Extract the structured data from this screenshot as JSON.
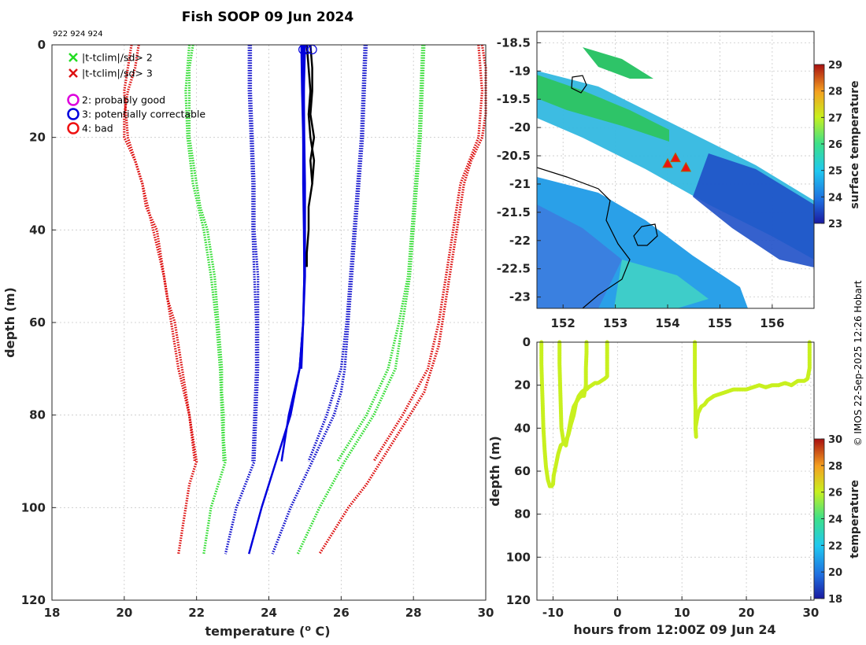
{
  "title": "Fish SOOP 09 Jun 2024",
  "platform_ids": "922 924 924",
  "copyright": "© IMOS 22-Sep-2025 12:26 Hobart",
  "colors": {
    "flag_good": "#22dd22",
    "flag_bad": "#dd1111",
    "probably_good": "#dd00dd",
    "correctable": "#0000dd",
    "bad": "#ee1111",
    "profile": "#000000",
    "clim_red": "#dd1111",
    "clim_green": "#33dd33",
    "clim_blue": "#1111cc",
    "timeseries": "#c8f01e"
  },
  "chart_data": [
    {
      "id": "profile",
      "type": "line",
      "xlabel": "temperature (",
      "xlabel_sup": "o",
      "xlabel_tail": " C)",
      "ylabel": "depth (m)",
      "xlim": [
        18,
        30
      ],
      "ylim": [
        0,
        120
      ],
      "xticks": [
        "18",
        "20",
        "22",
        "24",
        "26",
        "28",
        "30"
      ],
      "yticks": [
        "0",
        "20",
        "40",
        "60",
        "80",
        "100",
        "120"
      ],
      "legend": [
        {
          "marker": "x",
          "color_key": "flag_good",
          "label": "|t-tclim|/sd> 2"
        },
        {
          "marker": "x",
          "color_key": "flag_bad",
          "label": "|t-tclim|/sd> 3"
        },
        {
          "marker": "o",
          "color_key": "probably_good",
          "label": "2: probably good"
        },
        {
          "marker": "o",
          "color_key": "correctable",
          "label": "3: potentially correctable"
        },
        {
          "marker": "o",
          "color_key": "bad",
          "label": "4: bad"
        }
      ],
      "series": [
        {
          "name": "clim -3sd",
          "color_key": "clim_red",
          "style": "dotted",
          "depth": [
            0,
            5,
            10,
            15,
            20,
            25,
            30,
            35,
            40,
            45,
            50,
            55,
            60,
            65,
            70,
            75,
            80,
            85,
            90,
            95,
            100,
            105,
            110
          ],
          "temp": [
            20.4,
            20.3,
            20.1,
            20.0,
            20.0,
            20.3,
            20.5,
            20.6,
            20.9,
            21.0,
            21.1,
            21.2,
            21.4,
            21.5,
            21.6,
            21.7,
            21.8,
            21.9,
            22.0,
            21.8,
            21.7,
            21.6,
            21.5
          ]
        },
        {
          "name": "clim -3sd b",
          "color_key": "clim_red",
          "style": "dotted",
          "depth": [
            0,
            10,
            20,
            30,
            40,
            50,
            60,
            70,
            80,
            90
          ],
          "temp": [
            20.2,
            20.0,
            20.1,
            20.5,
            20.8,
            21.1,
            21.3,
            21.5,
            21.8,
            21.95
          ]
        },
        {
          "name": "clim -2sd",
          "color_key": "clim_green",
          "style": "dotted",
          "depth": [
            0,
            5,
            10,
            15,
            20,
            25,
            30,
            35,
            40,
            45,
            50,
            55,
            60,
            65,
            70,
            75,
            80,
            85,
            90,
            95,
            100,
            105,
            110
          ],
          "temp": [
            21.9,
            21.8,
            21.8,
            21.8,
            21.8,
            21.9,
            22.0,
            22.1,
            22.3,
            22.4,
            22.5,
            22.55,
            22.6,
            22.65,
            22.7,
            22.7,
            22.75,
            22.75,
            22.8,
            22.6,
            22.4,
            22.3,
            22.2
          ]
        },
        {
          "name": "clim -2sd b",
          "color_key": "clim_green",
          "style": "dotted",
          "depth": [
            0,
            10,
            20,
            30,
            40,
            50,
            60,
            70,
            80,
            90
          ],
          "temp": [
            21.8,
            21.7,
            21.75,
            21.9,
            22.2,
            22.4,
            22.55,
            22.65,
            22.7,
            22.75
          ]
        },
        {
          "name": "clim -1sd",
          "color_key": "clim_blue",
          "style": "dotted",
          "depth": [
            0,
            10,
            20,
            30,
            40,
            50,
            60,
            70,
            80,
            90,
            100,
            110
          ],
          "temp": [
            23.5,
            23.5,
            23.55,
            23.6,
            23.6,
            23.7,
            23.7,
            23.7,
            23.65,
            23.6,
            23.1,
            22.8
          ]
        },
        {
          "name": "clim -1sd b",
          "color_key": "clim_blue",
          "style": "dotted",
          "depth": [
            0,
            10,
            20,
            30,
            40,
            50,
            60,
            70,
            80,
            90
          ],
          "temp": [
            23.45,
            23.45,
            23.5,
            23.55,
            23.55,
            23.6,
            23.65,
            23.65,
            23.6,
            23.55
          ]
        },
        {
          "name": "clim +1sd",
          "color_key": "clim_blue",
          "style": "dotted",
          "depth": [
            0,
            10,
            20,
            30,
            40,
            50,
            60,
            70,
            75,
            80,
            85,
            90,
            100,
            110
          ],
          "temp": [
            26.7,
            26.65,
            26.6,
            26.5,
            26.4,
            26.3,
            26.2,
            26.1,
            26.0,
            25.8,
            25.5,
            25.2,
            24.6,
            24.1
          ]
        },
        {
          "name": "clim +1sd b",
          "color_key": "clim_blue",
          "style": "dotted",
          "depth": [
            0,
            10,
            20,
            30,
            40,
            50,
            60,
            70,
            80,
            90
          ],
          "temp": [
            26.65,
            26.6,
            26.55,
            26.45,
            26.35,
            26.25,
            26.15,
            26.0,
            25.6,
            25.1
          ]
        },
        {
          "name": "clim +2sd",
          "color_key": "clim_green",
          "style": "dotted",
          "depth": [
            0,
            10,
            20,
            30,
            40,
            50,
            60,
            70,
            75,
            80,
            85,
            90,
            100,
            110
          ],
          "temp": [
            28.3,
            28.25,
            28.2,
            28.1,
            28.0,
            27.9,
            27.7,
            27.5,
            27.2,
            26.9,
            26.5,
            26.1,
            25.4,
            24.8
          ]
        },
        {
          "name": "clim +2sd b",
          "color_key": "clim_green",
          "style": "dotted",
          "depth": [
            0,
            10,
            20,
            30,
            40,
            50,
            60,
            70,
            80,
            90
          ],
          "temp": [
            28.25,
            28.2,
            28.15,
            28.05,
            27.95,
            27.85,
            27.6,
            27.3,
            26.7,
            25.9
          ]
        },
        {
          "name": "clim +3sd",
          "color_key": "clim_red",
          "style": "dotted",
          "depth": [
            0,
            5,
            10,
            15,
            20,
            25,
            30,
            35,
            40,
            45,
            50,
            55,
            60,
            65,
            70,
            75,
            80,
            85,
            90,
            95,
            100,
            105,
            110
          ],
          "temp": [
            29.9,
            30.0,
            30.0,
            30.0,
            29.9,
            29.6,
            29.4,
            29.3,
            29.2,
            29.1,
            29.0,
            28.9,
            28.8,
            28.7,
            28.5,
            28.3,
            27.9,
            27.5,
            27.1,
            26.7,
            26.2,
            25.8,
            25.4
          ]
        },
        {
          "name": "clim +3sd b",
          "color_key": "clim_red",
          "style": "dotted",
          "depth": [
            0,
            10,
            20,
            30,
            40,
            50,
            60,
            70,
            80,
            90
          ],
          "temp": [
            29.8,
            29.9,
            29.8,
            29.3,
            29.1,
            28.9,
            28.7,
            28.4,
            27.7,
            26.9
          ]
        },
        {
          "name": "profile 1",
          "color_key": "correctable",
          "style": "solid",
          "width": 2.5,
          "depth": [
            0,
            10,
            20,
            30,
            40,
            50,
            60,
            70,
            80,
            90,
            100,
            110
          ],
          "temp": [
            24.95,
            24.97,
            24.98,
            25.0,
            25.0,
            25.0,
            24.95,
            24.85,
            24.6,
            24.2,
            23.8,
            23.45
          ]
        },
        {
          "name": "profile 2",
          "color_key": "correctable",
          "style": "solid",
          "width": 2.5,
          "depth": [
            0,
            10,
            20,
            30,
            40,
            50,
            60,
            70,
            80,
            90
          ],
          "temp": [
            25.0,
            24.97,
            24.95,
            24.95,
            24.97,
            24.98,
            24.95,
            24.85,
            24.55,
            24.35
          ]
        },
        {
          "name": "profile 3",
          "color_key": "correctable",
          "style": "solid",
          "width": 2.5,
          "depth": [
            0,
            10,
            20,
            30,
            40,
            50,
            60,
            70
          ],
          "temp": [
            24.9,
            24.92,
            24.95,
            24.97,
            24.98,
            24.98,
            24.95,
            24.9
          ]
        },
        {
          "name": "profile 4",
          "color_key": "profile",
          "style": "solid",
          "width": 2.5,
          "depth": [
            0,
            5,
            10,
            15,
            20,
            25,
            30,
            35,
            40,
            45,
            48
          ],
          "temp": [
            25.15,
            25.2,
            25.2,
            25.15,
            25.25,
            25.15,
            25.2,
            25.1,
            25.1,
            25.05,
            25.05
          ]
        },
        {
          "name": "profile 5",
          "color_key": "profile",
          "style": "solid",
          "width": 2.5,
          "depth": [
            0,
            5,
            10,
            15,
            20,
            25,
            30
          ],
          "temp": [
            25.05,
            25.1,
            25.15,
            25.1,
            25.15,
            25.25,
            25.2
          ]
        }
      ],
      "circles": [
        {
          "temp": 24.95,
          "depth": 0.5,
          "color_key": "correctable"
        },
        {
          "temp": 25.05,
          "depth": 0.5,
          "color_key": "correctable"
        },
        {
          "temp": 25.2,
          "depth": 0.5,
          "color_key": "correctable"
        }
      ]
    },
    {
      "id": "map",
      "type": "heatmap",
      "xlim": [
        151.5,
        156.8
      ],
      "ylim": [
        -23.2,
        -18.3
      ],
      "xticks": [
        "152",
        "153",
        "154",
        "155",
        "156"
      ],
      "yticks": [
        "-18.5",
        "-19",
        "-19.5",
        "-20",
        "-20.5",
        "-21",
        "-21.5",
        "-22",
        "-22.5",
        "-23"
      ],
      "colorbar": {
        "label": "surface temperature",
        "ticks": [
          "23",
          "24",
          "25",
          "26",
          "27",
          "28",
          "29"
        ],
        "range": [
          23,
          29
        ]
      },
      "stations": [
        {
          "lon": 154.0,
          "lat": -20.65
        },
        {
          "lon": 154.15,
          "lat": -20.55
        },
        {
          "lon": 154.35,
          "lat": -20.72
        }
      ]
    },
    {
      "id": "timeseries",
      "type": "scatter",
      "xlabel": "hours from 12:00Z 09 Jun 24",
      "ylabel": "depth (m)",
      "xlim": [
        -12.5,
        30.5
      ],
      "ylim": [
        0,
        120
      ],
      "xticks": [
        "-10",
        "0",
        "10",
        "20",
        "30"
      ],
      "yticks": [
        "0",
        "20",
        "40",
        "60",
        "80",
        "100",
        "120"
      ],
      "colorbar": {
        "label": "temperature",
        "ticks": [
          "18",
          "20",
          "22",
          "24",
          "26",
          "28",
          "30"
        ],
        "range": [
          18,
          30
        ]
      },
      "series": [
        {
          "name": "cast 1",
          "x": [
            -11.8,
            -11.8,
            -11.7,
            -11.6,
            -11.5,
            -11.3,
            -11.1,
            -10.8,
            -10.5,
            -10.2,
            -10.0,
            -9.9
          ],
          "depth": [
            0,
            10,
            20,
            30,
            40,
            50,
            58,
            64,
            67,
            67,
            66,
            62
          ]
        },
        {
          "name": "cast 2",
          "x": [
            -9.9,
            -9.6,
            -9.2,
            -8.8,
            -8.4,
            -8.0,
            -7.6,
            -7.2,
            -6.8,
            -6.4,
            -6.0,
            -5.5,
            -5.0
          ],
          "depth": [
            62,
            58,
            52,
            48,
            47,
            46,
            43,
            38,
            34,
            28,
            25,
            23,
            22
          ]
        },
        {
          "name": "cast 3",
          "x": [
            -9.0,
            -9.0,
            -8.9,
            -8.8,
            -8.7,
            -8.4,
            -8.0
          ],
          "depth": [
            0,
            10,
            20,
            30,
            40,
            46,
            48
          ]
        },
        {
          "name": "cast 4",
          "x": [
            -8.0,
            -7.6,
            -7.2,
            -6.8,
            -6.4,
            -6.0,
            -5.6,
            -5.2,
            -4.9
          ],
          "depth": [
            48,
            42,
            35,
            30,
            28,
            26,
            25,
            25,
            20
          ]
        },
        {
          "name": "cast 5",
          "x": [
            -4.9,
            -4.9,
            -4.8,
            -4.8
          ],
          "depth": [
            20,
            12,
            5,
            0
          ]
        },
        {
          "name": "cast 6",
          "x": [
            -4.8,
            -4.5,
            -4.0,
            -3.5,
            -3.0,
            -2.5,
            -2.0,
            -1.6,
            -1.6,
            -1.6,
            -1.6
          ],
          "depth": [
            22,
            21,
            20,
            19,
            19,
            18,
            17,
            16,
            10,
            5,
            0
          ]
        },
        {
          "name": "cast 7",
          "x": [
            12.0,
            12.0,
            12.0,
            12.1,
            12.1,
            12.2,
            12.1
          ],
          "depth": [
            0,
            10,
            20,
            30,
            38,
            44,
            40
          ]
        },
        {
          "name": "cast 8",
          "x": [
            12.1,
            12.5,
            13.0,
            13.5,
            14.0,
            15.0,
            16.0,
            17.0,
            18.0,
            19.0,
            20.0,
            21.0,
            22.0,
            23.0,
            24.0,
            25.0,
            26.0,
            27.0,
            28.0,
            29.0,
            29.5,
            29.8,
            29.8,
            29.8
          ],
          "depth": [
            40,
            33,
            30,
            29,
            27,
            25,
            24,
            23,
            22,
            22,
            22,
            21,
            20,
            21,
            20,
            20,
            19,
            20,
            18,
            18,
            17,
            12,
            5,
            0
          ]
        }
      ]
    }
  ]
}
